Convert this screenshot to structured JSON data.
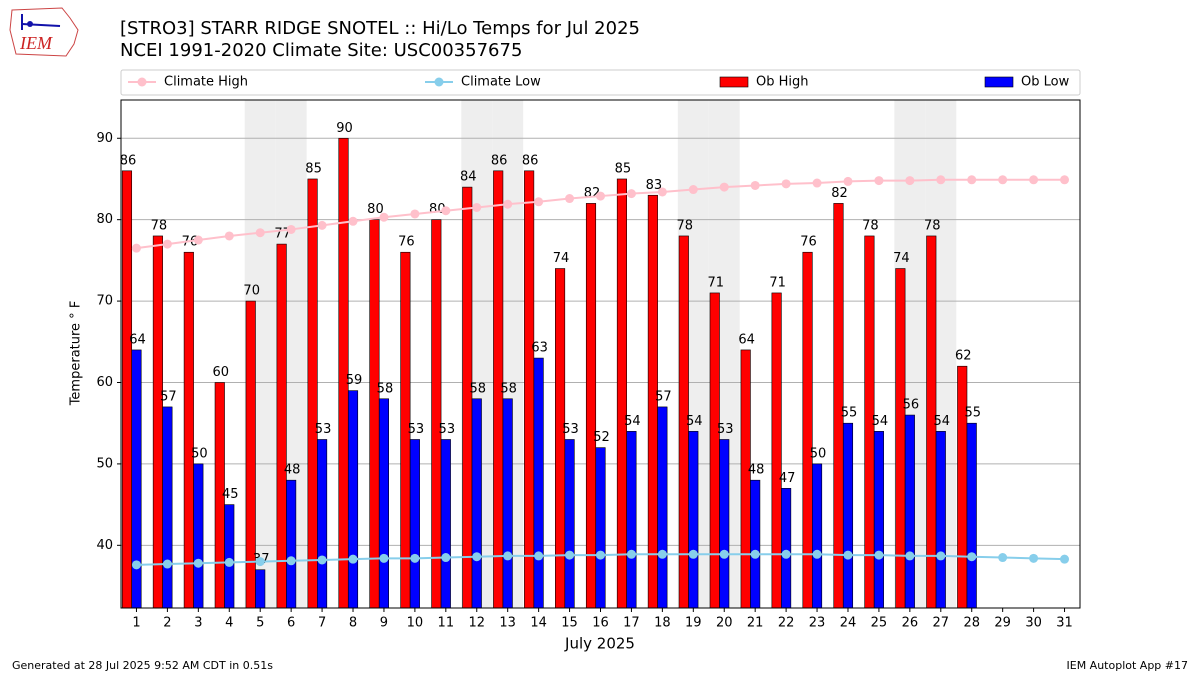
{
  "chart_data": {
    "type": "bar",
    "logo_text": "IEM",
    "title": "[STRO3] STARR RIDGE SNOTEL :: Hi/Lo Temps for Jul 2025",
    "subtitle": "NCEI 1991-2020 Climate Site: USC00357675",
    "ylabel": "Temperature $^\\circ$F",
    "ylabel_printed": "Temperature ° F",
    "xlabel": "July 2025",
    "footer_left": "Generated at 28 Jul 2025 9:52 AM CDT in 0.51s",
    "footer_right": "IEM Autoplot App #17",
    "categories": [
      "1",
      "2",
      "3",
      "4",
      "5",
      "6",
      "7",
      "8",
      "9",
      "10",
      "11",
      "12",
      "13",
      "14",
      "15",
      "16",
      "17",
      "18",
      "19",
      "20",
      "21",
      "22",
      "23",
      "24",
      "25",
      "26",
      "27",
      "28",
      "29",
      "30",
      "31"
    ],
    "shaded_categories": [
      "5",
      "6",
      "12",
      "13",
      "19",
      "20",
      "26",
      "27"
    ],
    "ylim": [
      32.3,
      94.7
    ],
    "yticks": [
      40,
      50,
      60,
      70,
      80,
      90
    ],
    "grid": true,
    "legend": "top",
    "series": [
      {
        "name": "Climate High",
        "kind": "line",
        "color": "#ffc0cb",
        "values": [
          76.5,
          77,
          77.5,
          78,
          78.4,
          78.8,
          79.3,
          79.8,
          80.3,
          80.7,
          81.1,
          81.5,
          81.9,
          82.2,
          82.6,
          82.9,
          83.2,
          83.4,
          83.7,
          84,
          84.2,
          84.4,
          84.5,
          84.7,
          84.8,
          84.8,
          84.9,
          84.9,
          84.9,
          84.9,
          84.9
        ]
      },
      {
        "name": "Climate Low",
        "kind": "line",
        "color": "#87ceeb",
        "values": [
          37.6,
          37.7,
          37.8,
          37.9,
          38,
          38.1,
          38.2,
          38.3,
          38.4,
          38.4,
          38.5,
          38.6,
          38.7,
          38.7,
          38.8,
          38.8,
          38.9,
          38.9,
          38.9,
          38.9,
          38.9,
          38.9,
          38.9,
          38.8,
          38.8,
          38.7,
          38.7,
          38.6,
          38.5,
          38.4,
          38.3
        ]
      },
      {
        "name": "Ob High",
        "kind": "bar",
        "color": "#ff0000",
        "values": [
          86,
          78,
          76,
          60,
          70,
          77,
          85,
          90,
          80,
          76,
          80,
          84,
          86,
          86,
          74,
          82,
          85,
          83,
          78,
          71,
          64,
          71,
          76,
          82,
          78,
          74,
          78,
          62,
          null,
          null,
          null
        ]
      },
      {
        "name": "Ob Low",
        "kind": "bar",
        "color": "#0000ff",
        "values": [
          64,
          57,
          50,
          45,
          37,
          48,
          53,
          59,
          58,
          53,
          53,
          58,
          58,
          63,
          53,
          52,
          54,
          57,
          54,
          53,
          48,
          47,
          50,
          55,
          54,
          56,
          54,
          55,
          null,
          null,
          null
        ]
      }
    ]
  }
}
